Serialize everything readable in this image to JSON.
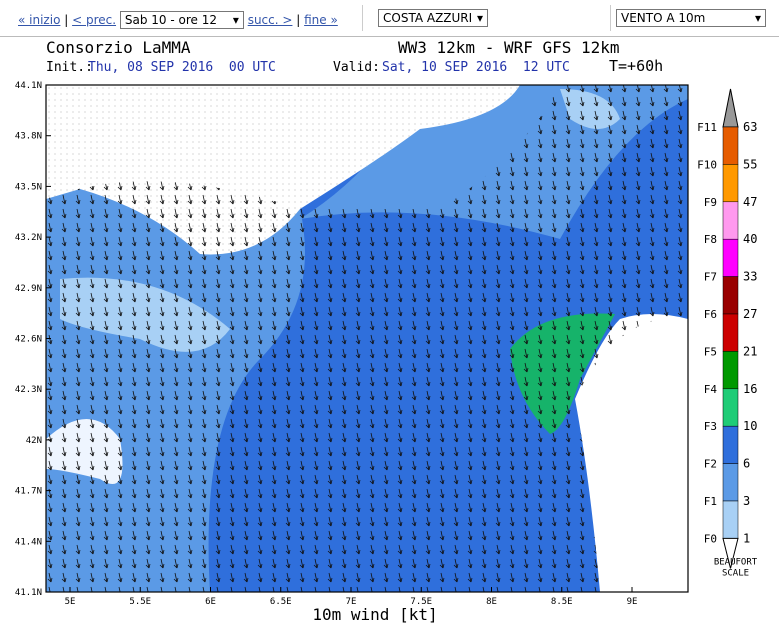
{
  "nav": {
    "first": "« inizio",
    "prev": "< prec.",
    "time_select": "Sab 10 - ore 12",
    "next": "succ. >",
    "last": "fine »",
    "area_select": "COSTA AZZURI",
    "field_select": "VENTO A 10m"
  },
  "map": {
    "title": "Consorzio LaMMA",
    "model": "WW3 12km - WRF GFS 12km",
    "init_label": "Init.:",
    "init": "Thu, 08 SEP 2016  00 UTC",
    "valid_label": "Valid:",
    "valid": "Sat, 10 SEP 2016  12 UTC",
    "lead": "T=+60h",
    "lat_labels": [
      "44.1N",
      "43.8N",
      "43.5N",
      "43.2N",
      "42.9N",
      "42.6N",
      "42.3N",
      "42N",
      "41.7N",
      "41.4N",
      "41.1N"
    ],
    "lon_labels": [
      "5E",
      "5.5E",
      "6E",
      "6.5E",
      "7E",
      "7.5E",
      "8E",
      "8.5E",
      "9E"
    ],
    "xlabel": "10m wind [kt]"
  },
  "legend": {
    "beaufort": [
      "F11",
      "F10",
      "F9",
      "F8",
      "F7",
      "F6",
      "F5",
      "F4",
      "F3",
      "F2",
      "F1",
      "F0"
    ],
    "knots": [
      "63",
      "55",
      "47",
      "40",
      "33",
      "27",
      "21",
      "16",
      "10",
      "6",
      "3",
      "1"
    ],
    "footer": "BEAUFORT SCALE"
  }
}
